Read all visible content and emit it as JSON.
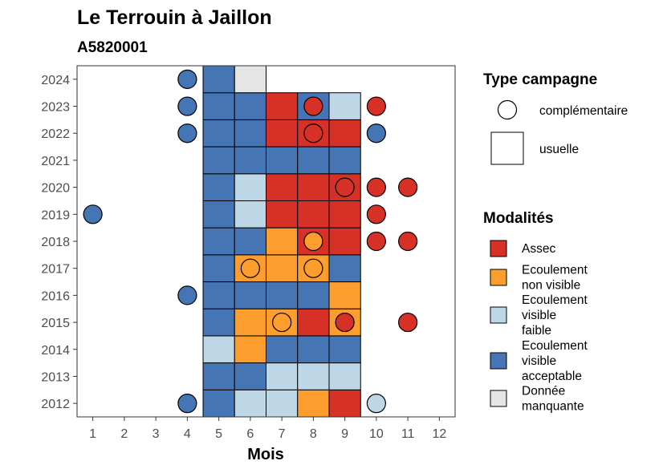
{
  "title": "Le Terrouin à Jaillon",
  "subtitle": "A5820001",
  "chart_data": {
    "type": "heatmap",
    "title": "Le Terrouin à Jaillon",
    "subtitle": "A5820001",
    "xlabel": "Mois",
    "ylabel": "",
    "x_ticks": [
      "1",
      "2",
      "3",
      "4",
      "5",
      "6",
      "7",
      "8",
      "9",
      "10",
      "11",
      "12"
    ],
    "y_ticks": [
      "2012",
      "2013",
      "2014",
      "2015",
      "2016",
      "2017",
      "2018",
      "2019",
      "2020",
      "2021",
      "2022",
      "2023",
      "2024"
    ],
    "xlim": [
      0.5,
      12.5
    ],
    "ylim": [
      2011.5,
      2024.5
    ],
    "grid": false,
    "legend_position": "right",
    "colors": {
      "Assec": "#d73027",
      "Ecoulement non visible": "#fd9d2e",
      "Ecoulement visible faible": "#bdd7e7",
      "Ecoulement visible acceptable": "#4575b4",
      "Donnée manquante": "#e5e5e5"
    },
    "usuelle": [
      {
        "year": 2012,
        "month": 5,
        "mod": "Ecoulement visible acceptable"
      },
      {
        "year": 2012,
        "month": 6,
        "mod": "Ecoulement visible faible"
      },
      {
        "year": 2012,
        "month": 7,
        "mod": "Ecoulement visible faible"
      },
      {
        "year": 2012,
        "month": 8,
        "mod": "Ecoulement non visible"
      },
      {
        "year": 2012,
        "month": 9,
        "mod": "Assec"
      },
      {
        "year": 2013,
        "month": 5,
        "mod": "Ecoulement visible acceptable"
      },
      {
        "year": 2013,
        "month": 6,
        "mod": "Ecoulement visible acceptable"
      },
      {
        "year": 2013,
        "month": 7,
        "mod": "Ecoulement visible faible"
      },
      {
        "year": 2013,
        "month": 8,
        "mod": "Ecoulement visible faible"
      },
      {
        "year": 2013,
        "month": 9,
        "mod": "Ecoulement visible faible"
      },
      {
        "year": 2014,
        "month": 5,
        "mod": "Ecoulement visible faible"
      },
      {
        "year": 2014,
        "month": 6,
        "mod": "Ecoulement non visible"
      },
      {
        "year": 2014,
        "month": 7,
        "mod": "Ecoulement visible acceptable"
      },
      {
        "year": 2014,
        "month": 8,
        "mod": "Ecoulement visible acceptable"
      },
      {
        "year": 2014,
        "month": 9,
        "mod": "Ecoulement visible acceptable"
      },
      {
        "year": 2015,
        "month": 5,
        "mod": "Ecoulement visible acceptable"
      },
      {
        "year": 2015,
        "month": 6,
        "mod": "Ecoulement non visible"
      },
      {
        "year": 2015,
        "month": 7,
        "mod": "Ecoulement non visible"
      },
      {
        "year": 2015,
        "month": 8,
        "mod": "Assec"
      },
      {
        "year": 2015,
        "month": 9,
        "mod": "Ecoulement non visible"
      },
      {
        "year": 2016,
        "month": 5,
        "mod": "Ecoulement visible acceptable"
      },
      {
        "year": 2016,
        "month": 6,
        "mod": "Ecoulement visible acceptable"
      },
      {
        "year": 2016,
        "month": 7,
        "mod": "Ecoulement visible acceptable"
      },
      {
        "year": 2016,
        "month": 8,
        "mod": "Ecoulement visible acceptable"
      },
      {
        "year": 2016,
        "month": 9,
        "mod": "Ecoulement non visible"
      },
      {
        "year": 2017,
        "month": 5,
        "mod": "Ecoulement visible acceptable"
      },
      {
        "year": 2017,
        "month": 6,
        "mod": "Ecoulement non visible"
      },
      {
        "year": 2017,
        "month": 7,
        "mod": "Ecoulement non visible"
      },
      {
        "year": 2017,
        "month": 8,
        "mod": "Ecoulement non visible"
      },
      {
        "year": 2017,
        "month": 9,
        "mod": "Ecoulement visible acceptable"
      },
      {
        "year": 2018,
        "month": 5,
        "mod": "Ecoulement visible acceptable"
      },
      {
        "year": 2018,
        "month": 6,
        "mod": "Ecoulement visible acceptable"
      },
      {
        "year": 2018,
        "month": 7,
        "mod": "Ecoulement non visible"
      },
      {
        "year": 2018,
        "month": 8,
        "mod": "Assec"
      },
      {
        "year": 2018,
        "month": 9,
        "mod": "Assec"
      },
      {
        "year": 2019,
        "month": 5,
        "mod": "Ecoulement visible acceptable"
      },
      {
        "year": 2019,
        "month": 6,
        "mod": "Ecoulement visible faible"
      },
      {
        "year": 2019,
        "month": 7,
        "mod": "Assec"
      },
      {
        "year": 2019,
        "month": 8,
        "mod": "Assec"
      },
      {
        "year": 2019,
        "month": 9,
        "mod": "Assec"
      },
      {
        "year": 2020,
        "month": 5,
        "mod": "Ecoulement visible acceptable"
      },
      {
        "year": 2020,
        "month": 6,
        "mod": "Ecoulement visible faible"
      },
      {
        "year": 2020,
        "month": 7,
        "mod": "Assec"
      },
      {
        "year": 2020,
        "month": 8,
        "mod": "Assec"
      },
      {
        "year": 2020,
        "month": 9,
        "mod": "Assec"
      },
      {
        "year": 2021,
        "month": 5,
        "mod": "Ecoulement visible acceptable"
      },
      {
        "year": 2021,
        "month": 6,
        "mod": "Ecoulement visible acceptable"
      },
      {
        "year": 2021,
        "month": 7,
        "mod": "Ecoulement visible acceptable"
      },
      {
        "year": 2021,
        "month": 8,
        "mod": "Ecoulement visible acceptable"
      },
      {
        "year": 2021,
        "month": 9,
        "mod": "Ecoulement visible acceptable"
      },
      {
        "year": 2022,
        "month": 5,
        "mod": "Ecoulement visible acceptable"
      },
      {
        "year": 2022,
        "month": 6,
        "mod": "Ecoulement visible acceptable"
      },
      {
        "year": 2022,
        "month": 7,
        "mod": "Assec"
      },
      {
        "year": 2022,
        "month": 8,
        "mod": "Assec"
      },
      {
        "year": 2022,
        "month": 9,
        "mod": "Assec"
      },
      {
        "year": 2023,
        "month": 5,
        "mod": "Ecoulement visible acceptable"
      },
      {
        "year": 2023,
        "month": 6,
        "mod": "Ecoulement visible acceptable"
      },
      {
        "year": 2023,
        "month": 7,
        "mod": "Assec"
      },
      {
        "year": 2023,
        "month": 8,
        "mod": "Ecoulement visible acceptable"
      },
      {
        "year": 2023,
        "month": 9,
        "mod": "Ecoulement visible faible"
      },
      {
        "year": 2024,
        "month": 5,
        "mod": "Ecoulement visible acceptable"
      },
      {
        "year": 2024,
        "month": 6,
        "mod": "Donnée manquante"
      }
    ],
    "complementaire": [
      {
        "year": 2012,
        "month": 4,
        "mod": "Ecoulement visible acceptable"
      },
      {
        "year": 2012,
        "month": 10,
        "mod": "Ecoulement visible faible"
      },
      {
        "year": 2015,
        "month": 7,
        "mod": "Ecoulement non visible"
      },
      {
        "year": 2015,
        "month": 9,
        "mod": "Assec"
      },
      {
        "year": 2015,
        "month": 11,
        "mod": "Assec"
      },
      {
        "year": 2016,
        "month": 4,
        "mod": "Ecoulement visible acceptable"
      },
      {
        "year": 2017,
        "month": 6,
        "mod": "Ecoulement non visible"
      },
      {
        "year": 2017,
        "month": 8,
        "mod": "Ecoulement non visible"
      },
      {
        "year": 2018,
        "month": 8,
        "mod": "Ecoulement non visible"
      },
      {
        "year": 2018,
        "month": 10,
        "mod": "Assec"
      },
      {
        "year": 2018,
        "month": 11,
        "mod": "Assec"
      },
      {
        "year": 2019,
        "month": 1,
        "mod": "Ecoulement visible acceptable"
      },
      {
        "year": 2019,
        "month": 10,
        "mod": "Assec"
      },
      {
        "year": 2020,
        "month": 9,
        "mod": "Assec"
      },
      {
        "year": 2020,
        "month": 10,
        "mod": "Assec"
      },
      {
        "year": 2020,
        "month": 11,
        "mod": "Assec"
      },
      {
        "year": 2022,
        "month": 4,
        "mod": "Ecoulement visible acceptable"
      },
      {
        "year": 2022,
        "month": 8,
        "mod": "Assec"
      },
      {
        "year": 2022,
        "month": 10,
        "mod": "Ecoulement visible acceptable"
      },
      {
        "year": 2023,
        "month": 4,
        "mod": "Ecoulement visible acceptable"
      },
      {
        "year": 2023,
        "month": 8,
        "mod": "Assec"
      },
      {
        "year": 2023,
        "month": 10,
        "mod": "Assec"
      },
      {
        "year": 2024,
        "month": 4,
        "mod": "Ecoulement visible acceptable"
      }
    ]
  },
  "legend_type": {
    "title": "Type campagne",
    "items": [
      {
        "label": "complémentaire",
        "shape": "circle"
      },
      {
        "label": "usuelle",
        "shape": "square"
      }
    ]
  },
  "legend_mod": {
    "title": "Modalités",
    "items": [
      {
        "lines": [
          "Assec"
        ],
        "color": "#d73027"
      },
      {
        "lines": [
          "Ecoulement",
          "non visible"
        ],
        "color": "#fd9d2e"
      },
      {
        "lines": [
          "Ecoulement",
          "visible",
          "faible"
        ],
        "color": "#bdd7e7"
      },
      {
        "lines": [
          "Ecoulement",
          "visible",
          "acceptable"
        ],
        "color": "#4575b4"
      },
      {
        "lines": [
          "Donnée",
          "manquante"
        ],
        "color": "#e5e5e5"
      }
    ]
  }
}
